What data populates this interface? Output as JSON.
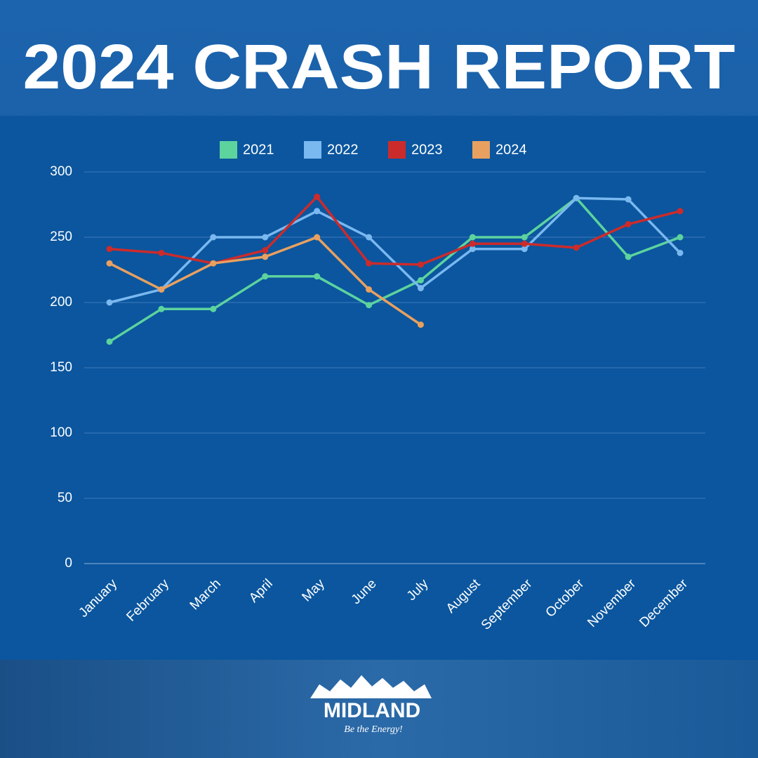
{
  "chart_data": {
    "type": "line",
    "title": "2024 CRASH REPORT",
    "categories": [
      "January",
      "February",
      "March",
      "April",
      "May",
      "June",
      "July",
      "August",
      "September",
      "October",
      "November",
      "December"
    ],
    "series": [
      {
        "name": "2021",
        "color": "#5dd39e",
        "values": [
          170,
          195,
          195,
          220,
          220,
          198,
          217,
          250,
          250,
          280,
          235,
          250
        ]
      },
      {
        "name": "2022",
        "color": "#7ab8f0",
        "values": [
          200,
          210,
          250,
          250,
          270,
          250,
          211,
          241,
          241,
          280,
          279,
          238
        ]
      },
      {
        "name": "2023",
        "color": "#cc2b2b",
        "values": [
          241,
          238,
          230,
          240,
          281,
          230,
          229,
          245,
          245,
          242,
          260,
          270
        ]
      },
      {
        "name": "2024",
        "color": "#e8a060",
        "values": [
          230,
          210,
          230,
          235,
          250,
          210,
          183,
          null,
          null,
          null,
          null,
          null
        ]
      }
    ],
    "ylim": [
      0,
      300
    ],
    "yticks": [
      0,
      50,
      100,
      150,
      200,
      250,
      300
    ],
    "grid": true,
    "legend": "top"
  },
  "logo": {
    "name": "MIDLAND",
    "tagline": "Be the Energy!"
  }
}
